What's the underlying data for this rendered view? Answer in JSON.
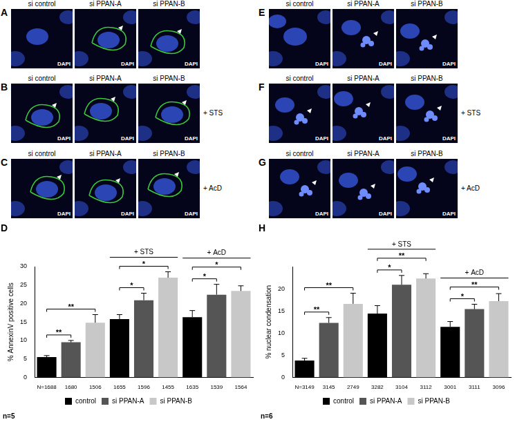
{
  "panels": [
    {
      "letter": "A",
      "columns": [
        "si control",
        "si PPAN-A",
        "si PPAN-B"
      ],
      "stain": "DAPI"
    },
    {
      "letter": "B",
      "columns": [
        "si control",
        "si PPAN-A",
        "si PPAN-B"
      ],
      "stain": "DAPI",
      "treatment": "+ STS"
    },
    {
      "letter": "C",
      "columns": [
        "si control",
        "si PPAN-A",
        "si PPAN-B"
      ],
      "stain": "DAPI",
      "treatment": "+ AcD"
    },
    {
      "letter": "E",
      "columns": [
        "si control",
        "si PPAN-A",
        "si PPAN-B"
      ],
      "stain": "DAPI"
    },
    {
      "letter": "F",
      "columns": [
        "si control",
        "si PPAN-A",
        "si PPAN-B"
      ],
      "stain": "DAPI",
      "treatment": "+ STS"
    },
    {
      "letter": "G",
      "columns": [
        "si control",
        "si PPAN-A",
        "si PPAN-B"
      ],
      "stain": "DAPI",
      "treatment": "+ AcD"
    }
  ],
  "chart_data": [
    {
      "panel": "D",
      "type": "bar",
      "y_label": "% AnnexinV positive cells",
      "categories": [
        "N=1688",
        "1680",
        "1506",
        "1655",
        "1596",
        "1455",
        "1635",
        "1539",
        "1564"
      ],
      "series": [
        {
          "name": "control",
          "color": "#000000",
          "values": [
            5.5,
            null,
            null,
            15.8,
            null,
            null,
            16.3,
            null,
            null
          ],
          "errors": [
            0.4,
            null,
            null,
            1.2,
            null,
            null,
            1.8,
            null,
            null
          ]
        },
        {
          "name": "si PPAN-A",
          "color": "#555555",
          "values": [
            null,
            9.5,
            null,
            null,
            20.9,
            null,
            null,
            22.4,
            null
          ],
          "errors": [
            null,
            0.5,
            null,
            null,
            1.9,
            null,
            null,
            2.8,
            null
          ]
        },
        {
          "name": "si PPAN-B",
          "color": "#c8c8c8",
          "values": [
            null,
            null,
            14.8,
            null,
            null,
            27,
            null,
            null,
            23.4
          ],
          "errors": [
            null,
            null,
            2.2,
            null,
            null,
            1.6,
            null,
            null,
            1.4
          ]
        }
      ],
      "ylim": [
        0,
        30
      ],
      "yticks": [
        0,
        5,
        10,
        15,
        20,
        25,
        30
      ],
      "grid": false,
      "legend": "bottom",
      "significance": [
        {
          "from": 0,
          "to": 1,
          "label": "**"
        },
        {
          "from": 0,
          "to": 2,
          "label": "**"
        },
        {
          "from": 3,
          "to": 4,
          "label": "*"
        },
        {
          "from": 3,
          "to": 5,
          "label": "*"
        },
        {
          "from": 6,
          "to": 7,
          "label": "*"
        },
        {
          "from": 6,
          "to": 8,
          "label": "*"
        }
      ],
      "groups": [
        {
          "label": "+ STS",
          "from": 3,
          "to": 5
        },
        {
          "label": "+ AcD",
          "from": 6,
          "to": 8
        }
      ],
      "note": "n=5"
    },
    {
      "panel": "H",
      "type": "bar",
      "y_label": "% nuclear condensation",
      "categories": [
        "N=3149",
        "3145",
        "2749",
        "3282",
        "3104",
        "3112",
        "3001",
        "3111",
        "3096"
      ],
      "series": [
        {
          "name": "control",
          "color": "#000000",
          "values": [
            3.8,
            null,
            null,
            14.4,
            null,
            null,
            11.4,
            null,
            null
          ],
          "errors": [
            0.5,
            null,
            null,
            1.8,
            null,
            null,
            1.2,
            null,
            null
          ]
        },
        {
          "name": "si PPAN-A",
          "color": "#555555",
          "values": [
            null,
            12.3,
            null,
            null,
            20.9,
            null,
            null,
            15.4,
            null
          ],
          "errors": [
            null,
            1.2,
            null,
            null,
            2.1,
            null,
            null,
            1.1,
            null
          ]
        },
        {
          "name": "si PPAN-B",
          "color": "#c8c8c8",
          "values": [
            null,
            null,
            16.6,
            null,
            null,
            22.3,
            null,
            null,
            17.2
          ],
          "errors": [
            null,
            null,
            2.4,
            null,
            null,
            1.1,
            null,
            null,
            1.7
          ]
        }
      ],
      "ylim": [
        0,
        25
      ],
      "yticks": [
        0,
        5,
        10,
        15,
        20
      ],
      "grid": false,
      "legend": "bottom",
      "significance": [
        {
          "from": 0,
          "to": 1,
          "label": "**"
        },
        {
          "from": 0,
          "to": 2,
          "label": "**"
        },
        {
          "from": 3,
          "to": 4,
          "label": "*"
        },
        {
          "from": 3,
          "to": 5,
          "label": "**"
        },
        {
          "from": 6,
          "to": 7,
          "label": "*"
        },
        {
          "from": 6,
          "to": 8,
          "label": "**"
        }
      ],
      "groups": [
        {
          "label": "+ STS",
          "from": 3,
          "to": 5
        },
        {
          "label": "+ AcD",
          "from": 6,
          "to": 8
        }
      ],
      "note": "n=6"
    }
  ]
}
